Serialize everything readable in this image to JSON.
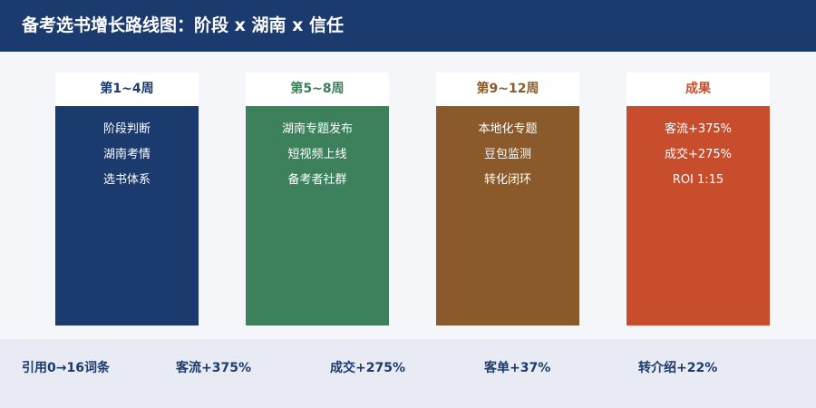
{
  "header": {
    "title": "备考选书增长路线图：阶段 x 湖南 x 信任",
    "background": "#1b3a6e"
  },
  "stages": [
    {
      "label": "第1~4周",
      "label_color": "#1b3a6e",
      "body_color": "#1b3a6e",
      "items": [
        "阶段判断",
        "湖南考情",
        "选书体系"
      ]
    },
    {
      "label": "第5~8周",
      "label_color": "#3a7d5a",
      "body_color": "#3c805c",
      "items": [
        "湖南专题发布",
        "短视频上线",
        "备考者社群"
      ]
    },
    {
      "label": "第9~12周",
      "label_color": "#8a5a28",
      "body_color": "#8a5a2a",
      "items": [
        "本地化专题",
        "豆包监测",
        "转化闭环"
      ]
    },
    {
      "label": "成果",
      "label_color": "#c94e2c",
      "body_color": "#c84d2c",
      "items": [
        "客流+375%",
        "成交+275%",
        "ROI 1:15"
      ]
    }
  ],
  "footer": {
    "metrics": [
      "引用0→16词条",
      "客流+375%",
      "成交+275%",
      "客单+37%",
      "转介绍+22%"
    ]
  }
}
